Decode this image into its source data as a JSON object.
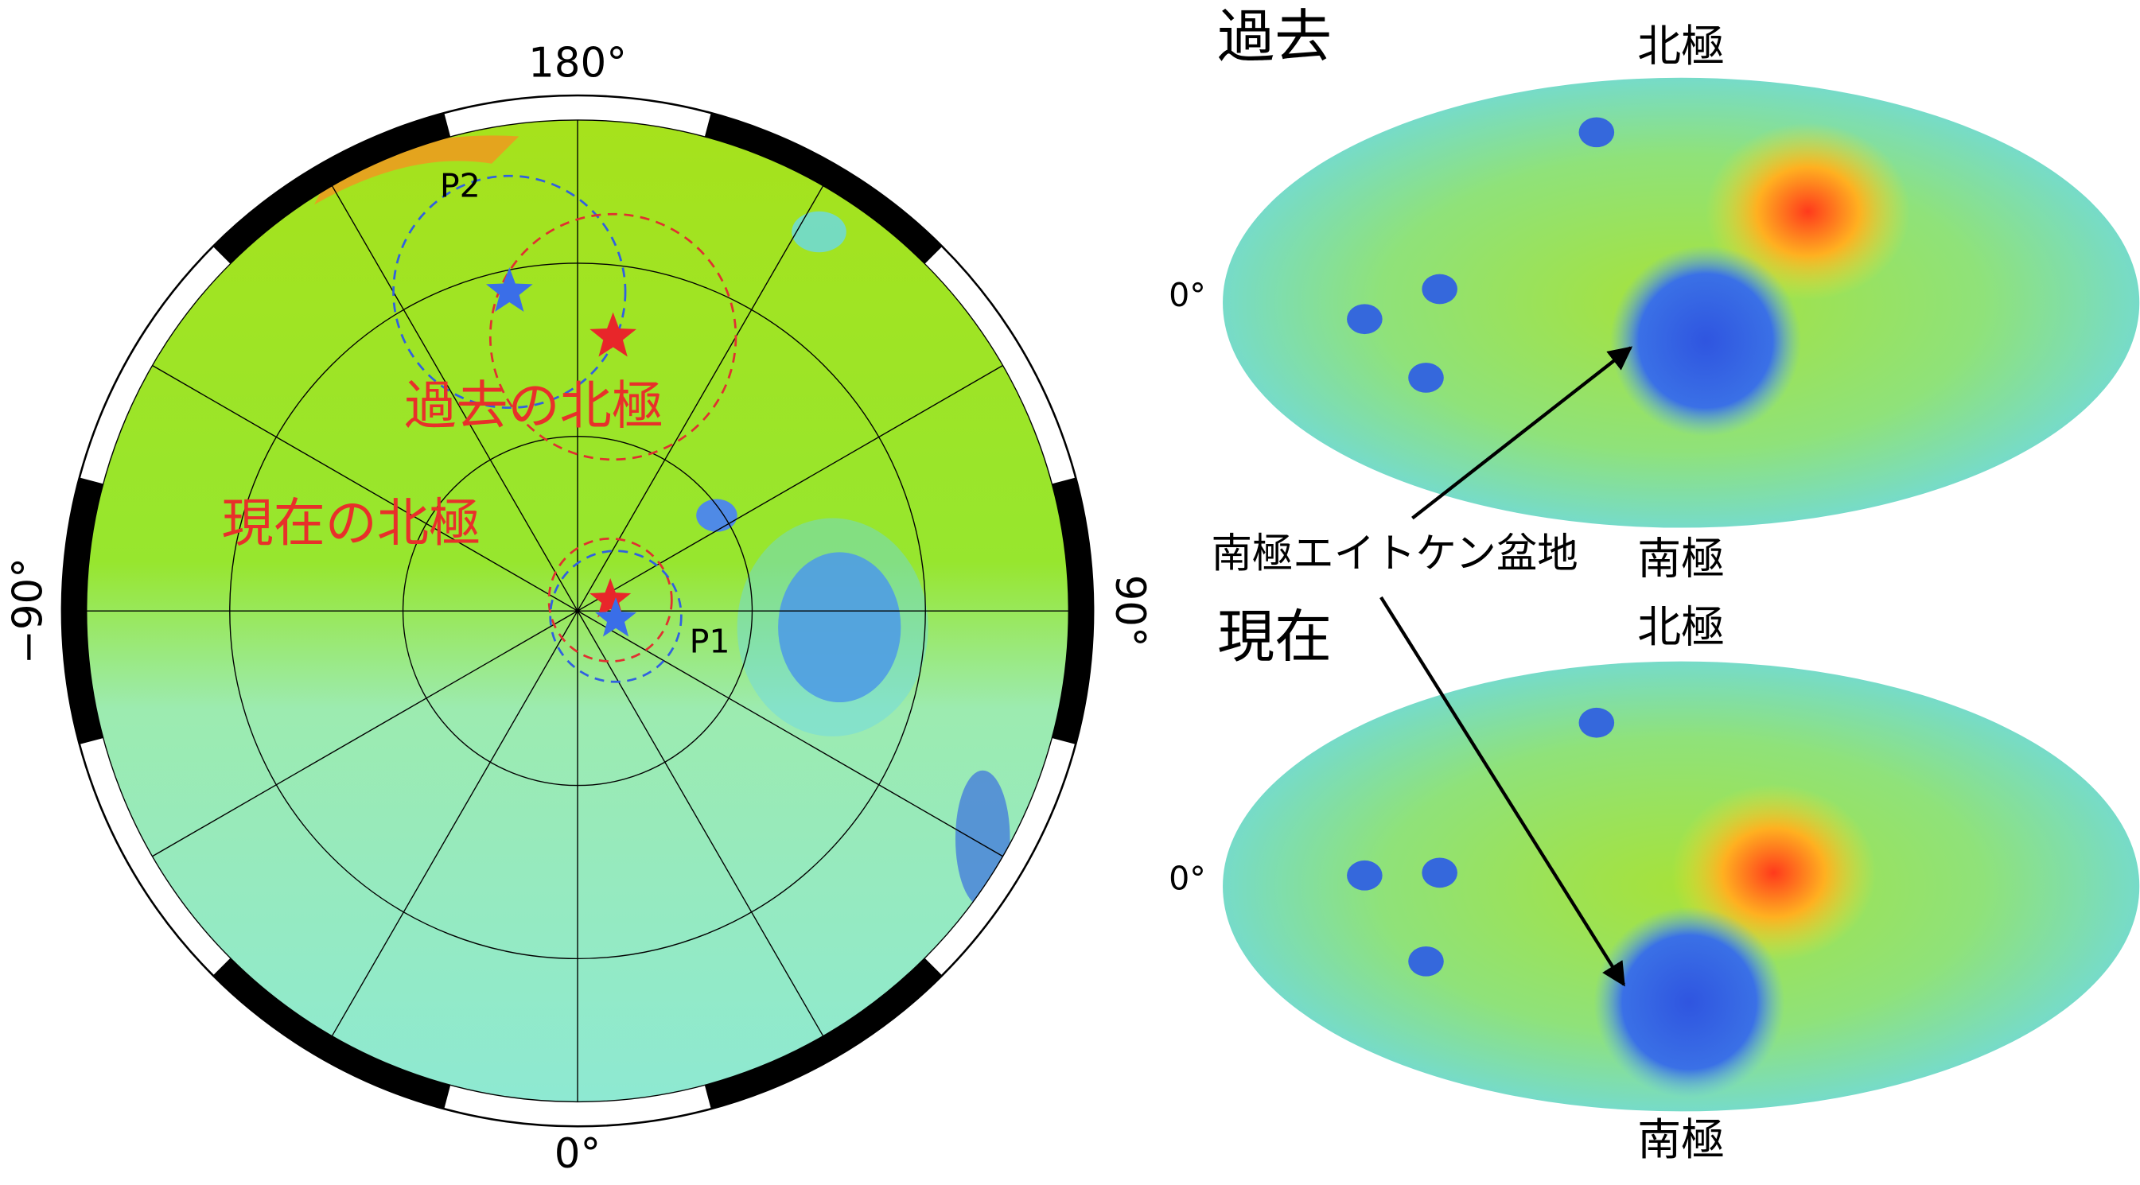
{
  "polar_map": {
    "lon_top": "180°",
    "lon_left": "−90°",
    "lon_right": "90°",
    "lon_bottom": "0°",
    "p1": "P1",
    "p2": "P2",
    "past_pole": "過去の北極",
    "present_pole": "現在の北極"
  },
  "maps": [
    {
      "title": "過去",
      "north": "北極",
      "south": "南極",
      "lon": "0°"
    },
    {
      "title": "現在",
      "north": "北極",
      "south": "南極",
      "lon": "0°"
    }
  ],
  "basin_label": "南極エイトケン盆地"
}
